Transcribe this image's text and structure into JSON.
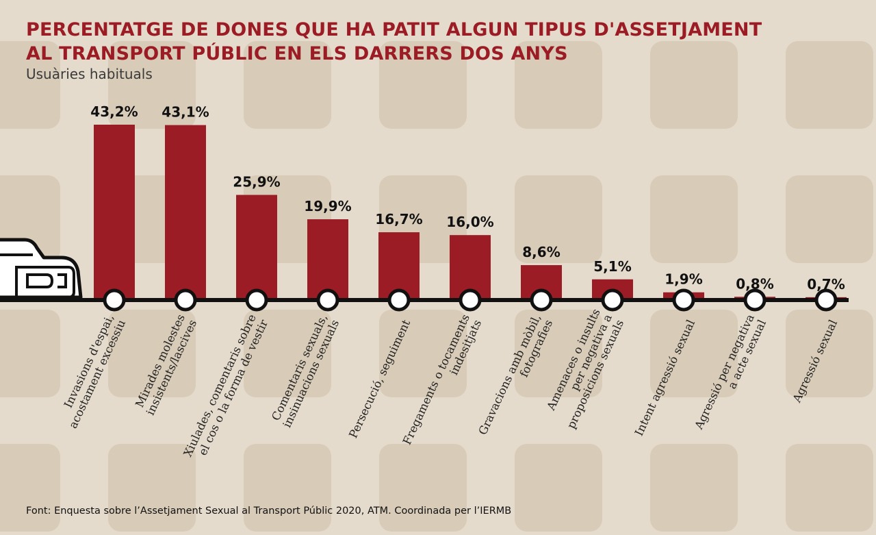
{
  "title_lines": [
    "PERCENTATGE DE DONES QUE HA PATIT ALGUN TIPUS D'ASSETJAMENT",
    "AL TRANSPORT PÚBLIC EN ELS DARRERS DOS ANYS"
  ],
  "subtitle": "Usuàries habituals",
  "source": "Font: Enquesta sobre l’Assetjament Sexual al Transport Públic 2020, ATM. Coordinada per l’IERMB",
  "colors": {
    "bar": "#9b1c24",
    "title": "#9b1c24",
    "line": "#111111",
    "background": "#e5dbcd",
    "pattern": "#d8cbb8"
  },
  "icons": [
    "train-icon",
    "station-stop-icon"
  ],
  "chart_data": {
    "type": "bar",
    "categories": [
      [
        "Invasions d'espai,",
        "acostament excessiu"
      ],
      [
        "Mirades molestes",
        "insistents/lascives"
      ],
      [
        "Xiulades, comentaris sobre",
        "el cos o la forma de vestir"
      ],
      [
        "Comentaris sexuals,",
        "insinuacions sexuals"
      ],
      [
        "Persecució, seguiment"
      ],
      [
        "Fregaments o tocaments",
        "indesitjats"
      ],
      [
        "Gravacions amb mòbil,",
        "fotografies"
      ],
      [
        "Amenaces o insults",
        "per negativa a",
        "proposicions sexuals"
      ],
      [
        "Intent agressió sexual"
      ],
      [
        "Agressió per negativa",
        "a acte sexual"
      ],
      [
        "Agressió sexual"
      ]
    ],
    "values": [
      43.2,
      43.1,
      25.9,
      19.9,
      16.7,
      16.0,
      8.6,
      5.1,
      1.9,
      0.8,
      0.7
    ],
    "value_labels": [
      "43,2%",
      "43,1%",
      "25,9%",
      "19,9%",
      "16,7%",
      "16,0%",
      "8,6%",
      "5,1%",
      "1,9%",
      "0,8%",
      "0,7%"
    ],
    "ylim": [
      0,
      50
    ],
    "grid": false,
    "legend": "none"
  }
}
